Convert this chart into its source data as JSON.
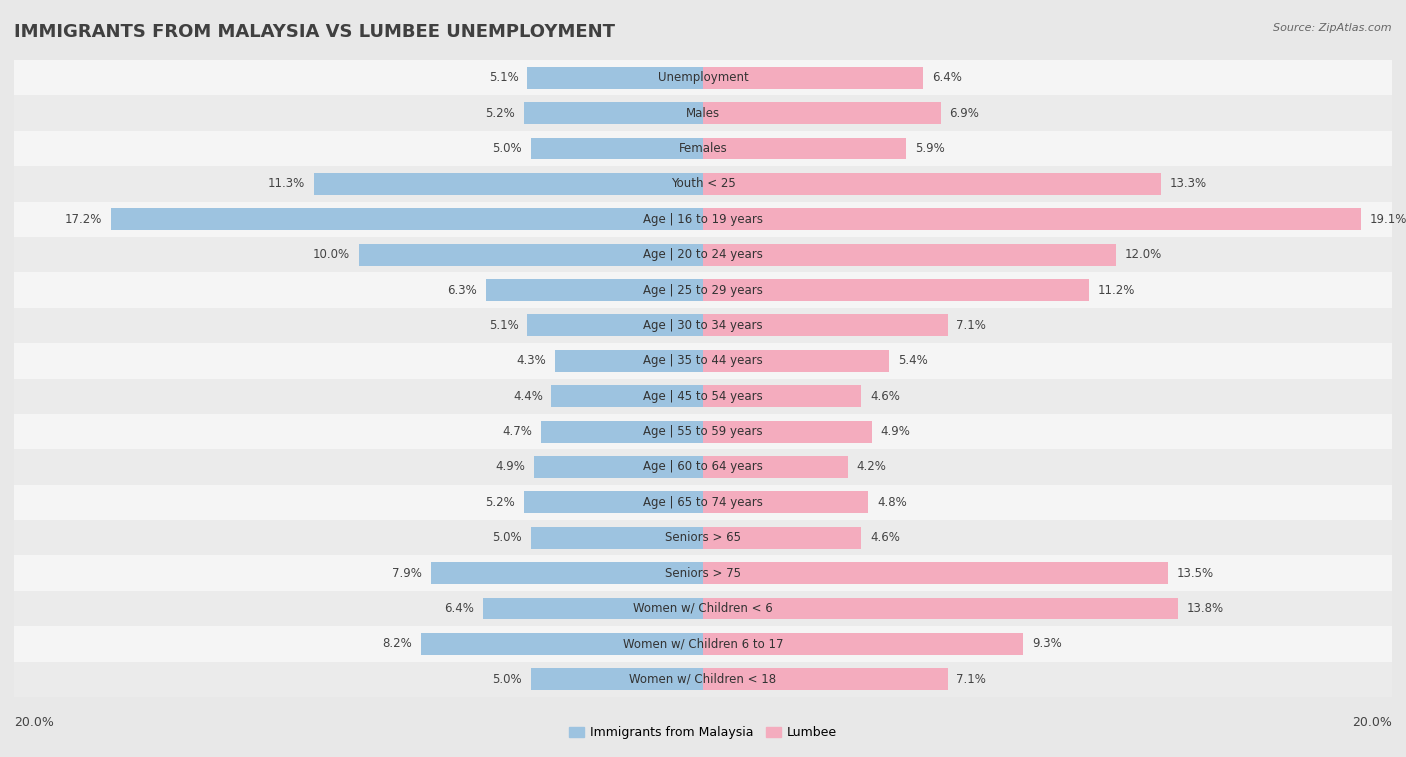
{
  "title": "IMMIGRANTS FROM MALAYSIA VS LUMBEE UNEMPLOYMENT",
  "source": "Source: ZipAtlas.com",
  "categories": [
    "Unemployment",
    "Males",
    "Females",
    "Youth < 25",
    "Age | 16 to 19 years",
    "Age | 20 to 24 years",
    "Age | 25 to 29 years",
    "Age | 30 to 34 years",
    "Age | 35 to 44 years",
    "Age | 45 to 54 years",
    "Age | 55 to 59 years",
    "Age | 60 to 64 years",
    "Age | 65 to 74 years",
    "Seniors > 65",
    "Seniors > 75",
    "Women w/ Children < 6",
    "Women w/ Children 6 to 17",
    "Women w/ Children < 18"
  ],
  "malaysia_values": [
    5.1,
    5.2,
    5.0,
    11.3,
    17.2,
    10.0,
    6.3,
    5.1,
    4.3,
    4.4,
    4.7,
    4.9,
    5.2,
    5.0,
    7.9,
    6.4,
    8.2,
    5.0
  ],
  "lumbee_values": [
    6.4,
    6.9,
    5.9,
    13.3,
    19.1,
    12.0,
    11.2,
    7.1,
    5.4,
    4.6,
    4.9,
    4.2,
    4.8,
    4.6,
    13.5,
    13.8,
    9.3,
    7.1
  ],
  "malaysia_color": "#9dc3e0",
  "lumbee_color": "#f4acbe",
  "malaysia_label": "Immigrants from Malaysia",
  "lumbee_label": "Lumbee",
  "x_axis_label_left": "20.0%",
  "x_axis_label_right": "20.0%",
  "max_value": 20.0,
  "background_color": "#e8e8e8",
  "row_color_odd": "#f5f5f5",
  "row_color_even": "#ebebeb",
  "title_fontsize": 13,
  "label_fontsize": 8.5,
  "value_fontsize": 8.5
}
